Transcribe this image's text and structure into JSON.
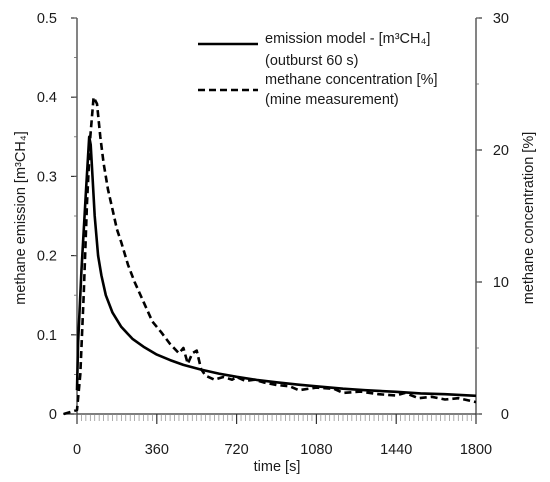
{
  "chart_data": {
    "type": "line",
    "title": "",
    "xlabel": "time [s]",
    "ylabel_left": "methane emission [m³CH₄]",
    "ylabel_right": "methane concentration [%]",
    "xlim": [
      0,
      1800
    ],
    "ylim_left": [
      0,
      0.5
    ],
    "ylim_right": [
      0,
      30
    ],
    "x_ticks": [
      "0",
      "360",
      "720",
      "1080",
      "1440",
      "1800"
    ],
    "y_left_ticks": [
      "0",
      "0.1",
      "0.2",
      "0.3",
      "0.4",
      "0.5"
    ],
    "y_right_ticks": [
      "0",
      "10",
      "20",
      "30"
    ],
    "grid": false,
    "legend_position": "top-right",
    "series": [
      {
        "name": "emission model - [m³CH₄] (outburst 60 s)",
        "axis": "left",
        "style": "solid",
        "color": "#000000",
        "x": [
          0,
          5,
          20,
          40,
          55,
          62,
          70,
          80,
          95,
          110,
          130,
          160,
          200,
          250,
          300,
          360,
          420,
          480,
          560,
          640,
          720,
          810,
          900,
          1000,
          1080,
          1200,
          1300,
          1440,
          1550,
          1660,
          1800
        ],
        "y": [
          0.03,
          0.09,
          0.18,
          0.28,
          0.35,
          0.34,
          0.3,
          0.25,
          0.2,
          0.175,
          0.15,
          0.128,
          0.11,
          0.095,
          0.085,
          0.075,
          0.068,
          0.062,
          0.056,
          0.051,
          0.047,
          0.043,
          0.04,
          0.037,
          0.035,
          0.032,
          0.03,
          0.028,
          0.026,
          0.025,
          0.023
        ]
      },
      {
        "name": "methane concentration [%] (mine measurement)",
        "axis": "right",
        "style": "dashed",
        "color": "#000000",
        "x": [
          -60,
          0,
          15,
          30,
          45,
          60,
          75,
          90,
          105,
          120,
          140,
          160,
          180,
          200,
          230,
          260,
          300,
          340,
          380,
          420,
          460,
          480,
          500,
          520,
          540,
          560,
          580,
          620,
          660,
          700,
          720,
          760,
          800,
          840,
          900,
          960,
          1000,
          1080,
          1160,
          1200,
          1280,
          1360,
          1440,
          1480,
          1540,
          1600,
          1660,
          1720,
          1800
        ],
        "y": [
          0,
          0.3,
          3,
          9,
          16,
          21,
          24,
          23.5,
          21,
          19,
          17,
          15.5,
          14,
          13,
          11.3,
          10,
          8.5,
          7,
          6.2,
          5.3,
          4.6,
          5,
          3.8,
          4.6,
          4.8,
          3.4,
          2.9,
          2.6,
          2.8,
          2.6,
          2.8,
          2.5,
          2.6,
          2.4,
          2.2,
          2.1,
          1.8,
          2.0,
          1.9,
          1.6,
          1.7,
          1.5,
          1.4,
          1.6,
          1.2,
          1.3,
          1.1,
          1.2,
          0.9
        ]
      }
    ],
    "legend": [
      {
        "line1": "emission model - [m³CH₄]",
        "line2": "(outburst 60 s)",
        "style": "solid"
      },
      {
        "line1": "methane concentration [%]",
        "line2": "(mine measurement)",
        "style": "dashed"
      }
    ]
  }
}
